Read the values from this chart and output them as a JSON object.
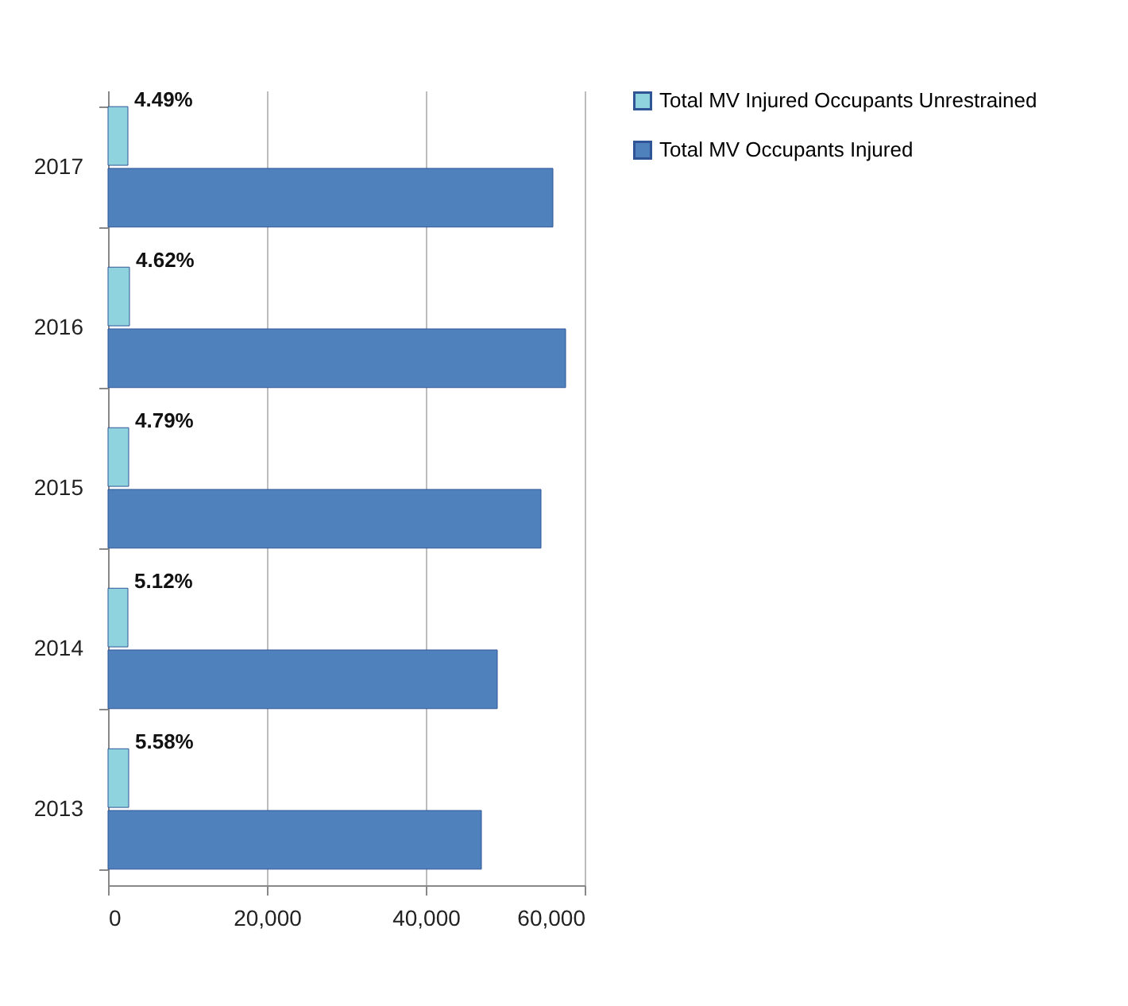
{
  "chart_data": {
    "type": "bar",
    "orientation": "horizontal",
    "categories": [
      "2017",
      "2016",
      "2015",
      "2014",
      "2013"
    ],
    "series": [
      {
        "name": "Total MV Injured Occupants Unrestrained",
        "color": "#8fd3de",
        "values": [
          2500,
          2700,
          2600,
          2500,
          2600
        ]
      },
      {
        "name": "Total MV Occupants Injured",
        "color": "#4f81bd",
        "values": [
          56000,
          57600,
          54500,
          49000,
          47000
        ]
      }
    ],
    "xlim": [
      0,
      60000
    ],
    "xticks": [
      0,
      {
        "value": 20000,
        "label": "20,000"
      },
      {
        "value": 40000,
        "label": "40,000"
      },
      {
        "value": 60000,
        "label": "60,000"
      }
    ],
    "annotations": [
      {
        "text": "4.49%",
        "x": 2500,
        "y": "2017"
      },
      {
        "text": "4.62%",
        "x": 2700,
        "y": "2016"
      },
      {
        "text": "4.79%",
        "x": 2600,
        "y": "2015"
      },
      {
        "text": "5.12%",
        "x": 2500,
        "y": "2014"
      },
      {
        "text": "5.58%",
        "x": 2600,
        "y": "2013"
      }
    ],
    "grid": "x",
    "legend": "right"
  }
}
